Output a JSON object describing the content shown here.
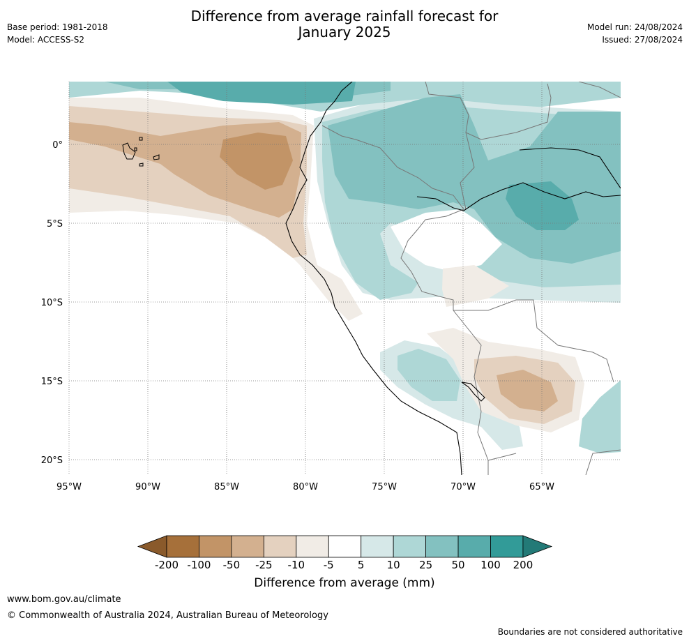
{
  "title_line1": "Difference from average rainfall forecast for",
  "title_line2": "January 2025",
  "meta": {
    "base_period": "Base period: 1981-2018",
    "model": "Model: ACCESS-S2",
    "model_run": "Model run: 24/08/2024",
    "issued": "Issued: 27/08/2024"
  },
  "axes": {
    "lon_labels": [
      "95°W",
      "90°W",
      "85°W",
      "80°W",
      "75°W",
      "70°W",
      "65°W"
    ],
    "lat_labels": [
      "0°",
      "5°S",
      "10°S",
      "15°S",
      "20°S"
    ]
  },
  "colorbar": {
    "label": "Difference from average (mm)",
    "ticks": [
      "-200",
      "-100",
      "-50",
      "-25",
      "-10",
      "-5",
      "5",
      "10",
      "25",
      "50",
      "100",
      "200"
    ],
    "colors": [
      "#a6703a",
      "#c29467",
      "#d3b08f",
      "#e4d1bf",
      "#f1ece6",
      "#ffffff",
      "#d6e8e8",
      "#aed7d6",
      "#83c1c0",
      "#58acab",
      "#329b98"
    ],
    "under_color": "#8a5a2b",
    "over_color": "#237a77"
  },
  "footer": {
    "url": "www.bom.gov.au/climate",
    "copyright": "© Commonwealth of Australia 2024, Australian Bureau of Meteorology",
    "disclaimer": "Boundaries are not considered authoritative"
  }
}
